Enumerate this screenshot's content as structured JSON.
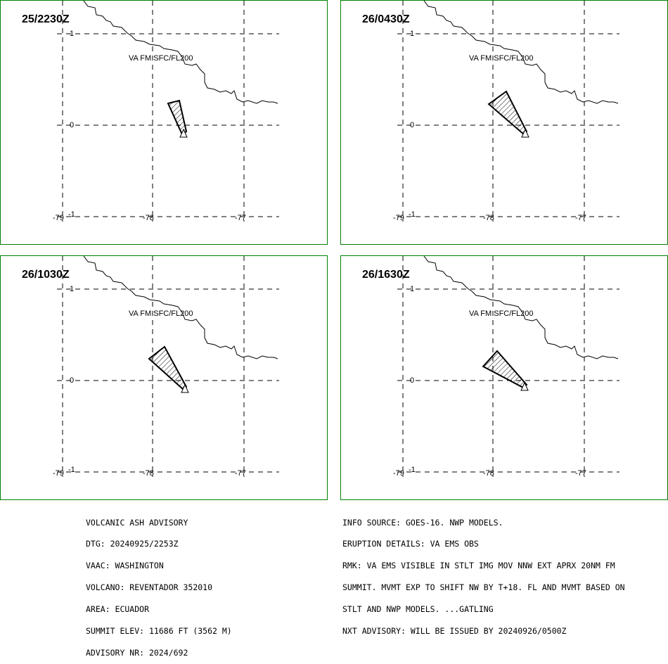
{
  "panels": [
    {
      "time": "25/2230Z",
      "label": "VA FM SFC/FL200",
      "ash": [
        [
          238,
          146
        ],
        [
          254,
          142
        ],
        [
          264,
          186
        ],
        [
          258,
          190
        ]
      ]
    },
    {
      "time": "26/0430Z",
      "label": "VA FM SFC/FL200",
      "ash": [
        [
          694,
          147
        ],
        [
          719,
          129
        ],
        [
          748,
          186
        ],
        [
          744,
          190
        ]
      ]
    },
    {
      "time": "26/1030Z",
      "label": "VA FM SFC/FL200",
      "ash": [
        [
          211,
          509
        ],
        [
          233,
          492
        ],
        [
          264,
          549
        ],
        [
          260,
          553
        ]
      ]
    },
    {
      "time": "26/1630Z",
      "label": "VA FM SFC/FL200",
      "ash": [
        [
          686,
          520
        ],
        [
          706,
          498
        ],
        [
          748,
          546
        ],
        [
          743,
          550
        ]
      ]
    }
  ],
  "axis": {
    "lat_labels": [
      "1",
      "0",
      "-1"
    ],
    "lon_labels": [
      "-79",
      "-78",
      "-77"
    ]
  },
  "advisory_left": [
    "VOLCANIC ASH ADVISORY",
    "DTG: 20240925/2253Z",
    "VAAC: WASHINGTON",
    "VOLCANO: REVENTADOR 352010",
    "AREA: ECUADOR",
    "SUMMIT ELEV: 11686 FT (3562 M)",
    "ADVISORY NR: 2024/692"
  ],
  "advisory_right": [
    "INFO SOURCE: GOES-16. NWP MODELS.",
    "ERUPTION DETAILS: VA EMS OBS",
    "RMK: VA EMS VISIBLE IN STLT IMG MOV NNW EXT APRX 20NM FM",
    "SUMMIT. MVMT EXP TO SHIFT NW BY T+18. FL AND MVMT BASED ON",
    "STLT AND NWP MODELS. ...GATLING",
    "NXT ADVISORY: WILL BE ISSUED BY 20240926/0500Z"
  ],
  "colors": {
    "frame": "#008000",
    "lines": "#000000"
  }
}
